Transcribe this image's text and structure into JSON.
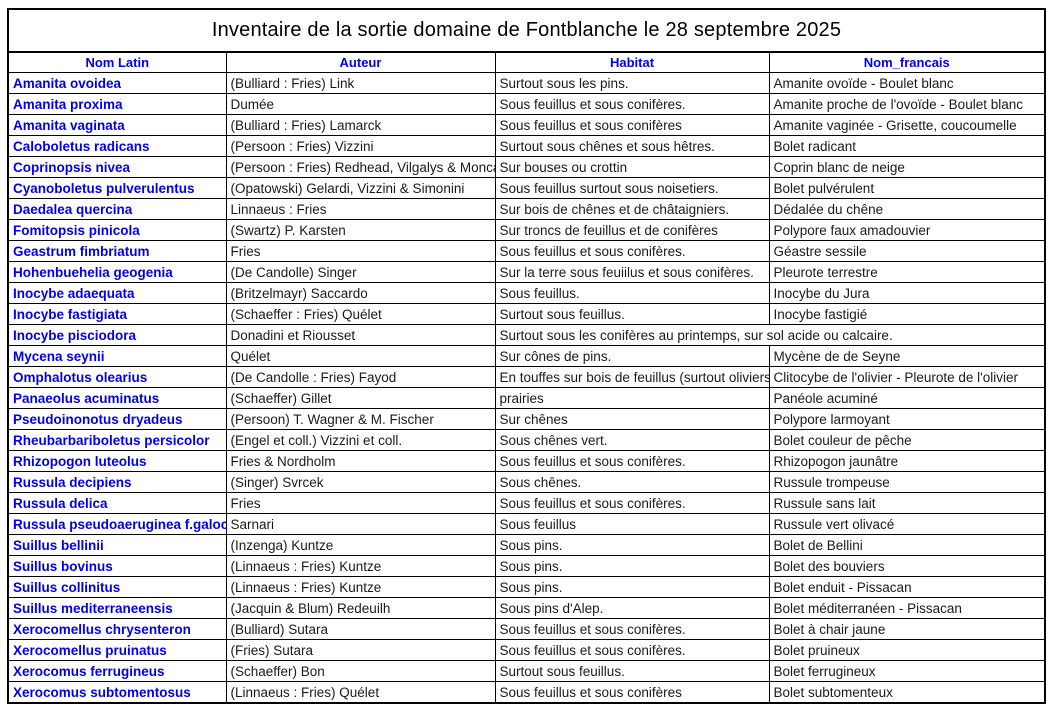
{
  "title": "Inventaire de la sortie domaine de Fontblanche le 28 septembre 2025",
  "columns": [
    "Nom Latin",
    "Auteur",
    "Habitat",
    "Nom_francais"
  ],
  "colors": {
    "header_text": "#0000EE",
    "latin_name_text": "#0000EE",
    "body_text": "#1a1a1a",
    "border": "#000000",
    "background": "#ffffff"
  },
  "rows": [
    {
      "nom_latin": "Amanita ovoidea",
      "auteur": "(Bulliard : Fries) Link",
      "habitat": "Surtout sous les pins.",
      "nom_francais": "Amanite ovoïde - Boulet blanc"
    },
    {
      "nom_latin": "Amanita proxima",
      "auteur": "Dumée",
      "habitat": "Sous feuillus et sous conifères.",
      "nom_francais": "Amanite proche de l'ovoïde - Boulet blanc"
    },
    {
      "nom_latin": "Amanita vaginata",
      "auteur": "(Bulliard : Fries) Lamarck",
      "habitat": "Sous feuillus et sous conifères",
      "nom_francais": "Amanite vaginée - Grisette, coucoumelle"
    },
    {
      "nom_latin": "Caloboletus radicans",
      "auteur": "(Persoon : Fries) Vizzini",
      "habitat": "Surtout sous chênes et sous hêtres.",
      "nom_francais": "Bolet radicant"
    },
    {
      "nom_latin": "Coprinopsis nivea",
      "auteur": "(Persoon : Fries) Redhead, Vilgalys & Moncalvo",
      "habitat": "Sur bouses ou crottin",
      "nom_francais": "Coprin blanc de neige"
    },
    {
      "nom_latin": "Cyanoboletus pulverulentus",
      "auteur": "(Opatowski) Gelardi, Vizzini & Simonini",
      "habitat": "Sous feuillus surtout sous noisetiers.",
      "nom_francais": "Bolet pulvérulent"
    },
    {
      "nom_latin": "Daedalea quercina",
      "auteur": "Linnaeus : Fries",
      "habitat": "Sur bois de chênes et de châtaigniers.",
      "nom_francais": "Dédalée du chêne"
    },
    {
      "nom_latin": "Fomitopsis pinicola",
      "auteur": "(Swartz) P. Karsten",
      "habitat": "Sur troncs de feuillus et de conifères",
      "nom_francais": "Polypore faux amadouvier"
    },
    {
      "nom_latin": "Geastrum fimbriatum",
      "auteur": "Fries",
      "habitat": "Sous feuillus et sous conifères.",
      "nom_francais": "Géastre sessile"
    },
    {
      "nom_latin": "Hohenbuehelia geogenia",
      "auteur": "(De Candolle) Singer",
      "habitat": "Sur la terre sous feuiilus et sous conifères.",
      "nom_francais": "Pleurote terrestre"
    },
    {
      "nom_latin": "Inocybe adaequata",
      "auteur": "(Britzelmayr) Saccardo",
      "habitat": "Sous feuillus.",
      "nom_francais": "Inocybe du Jura"
    },
    {
      "nom_latin": "Inocybe fastigiata",
      "auteur": "(Schaeffer : Fries) Quélet",
      "habitat": "Surtout sous feuillus.",
      "nom_francais": "Inocybe fastigié"
    },
    {
      "nom_latin": "Inocybe pisciodora",
      "auteur": "Donadini et Riousset",
      "habitat": "Surtout sous les conifères au printemps, sur sol acide ou calcaire.",
      "nom_francais": ""
    },
    {
      "nom_latin": "Mycena seynii",
      "auteur": "Quélet",
      "habitat": "Sur cônes de pins.",
      "nom_francais": "Mycène de de Seyne"
    },
    {
      "nom_latin": "Omphalotus olearius",
      "auteur": "(De Candolle : Fries) Fayod",
      "habitat": "En touffes sur bois de feuillus (surtout oliviers)",
      "nom_francais": "Clitocybe de l'olivier - Pleurote de l'olivier"
    },
    {
      "nom_latin": "Panaeolus acuminatus",
      "auteur": "(Schaeffer) Gillet",
      "habitat": "prairies",
      "nom_francais": "Panéole acuminé"
    },
    {
      "nom_latin": "Pseudoinonotus dryadeus",
      "auteur": "(Persoon) T. Wagner & M. Fischer",
      "habitat": "Sur chênes",
      "nom_francais": "Polypore larmoyant"
    },
    {
      "nom_latin": "Rheubarbariboletus persicolor",
      "auteur": "(Engel et coll.) Vizzini et coll.",
      "habitat": "Sous chênes vert.",
      "nom_francais": "Bolet couleur de pêche"
    },
    {
      "nom_latin": "Rhizopogon luteolus",
      "auteur": "Fries & Nordholm",
      "habitat": "Sous feuillus et sous conifères.",
      "nom_francais": "Rhizopogon jaunâtre"
    },
    {
      "nom_latin": "Russula decipiens",
      "auteur": "(Singer) Svrcek",
      "habitat": "Sous chênes.",
      "nom_francais": "Russule trompeuse"
    },
    {
      "nom_latin": "Russula delica",
      "auteur": "Fries",
      "habitat": "Sous feuillus et sous conifères.",
      "nom_francais": "Russule sans lait"
    },
    {
      "nom_latin": "Russula pseudoaeruginea f.galochroa",
      "auteur": "Sarnari",
      "habitat": "Sous feuillus",
      "nom_francais": "Russule vert olivacé"
    },
    {
      "nom_latin": "Suillus bellinii",
      "auteur": "(Inzenga) Kuntze",
      "habitat": "Sous pins.",
      "nom_francais": "Bolet de Bellini"
    },
    {
      "nom_latin": "Suillus bovinus",
      "auteur": "(Linnaeus : Fries) Kuntze",
      "habitat": "Sous pins.",
      "nom_francais": "Bolet des bouviers"
    },
    {
      "nom_latin": "Suillus collinitus",
      "auteur": "(Linnaeus : Fries) Kuntze",
      "habitat": "Sous pins.",
      "nom_francais": "Bolet enduit - Pissacan"
    },
    {
      "nom_latin": "Suillus mediterraneensis",
      "auteur": "(Jacquin & Blum) Redeuilh",
      "habitat": "Sous pins d'Alep.",
      "nom_francais": "Bolet méditerranéen - Pissacan"
    },
    {
      "nom_latin": "Xerocomellus chrysenteron",
      "auteur": "(Bulliard) Sutara",
      "habitat": "Sous feuillus et sous conifères.",
      "nom_francais": "Bolet à chair jaune"
    },
    {
      "nom_latin": "Xerocomellus pruinatus",
      "auteur": "(Fries) Sutara",
      "habitat": "Sous feuillus et sous conifères.",
      "nom_francais": "Bolet pruineux"
    },
    {
      "nom_latin": "Xerocomus ferrugineus",
      "auteur": "(Schaeffer) Bon",
      "habitat": "Surtout sous feuillus.",
      "nom_francais": "Bolet ferrugineux"
    },
    {
      "nom_latin": "Xerocomus subtomentosus",
      "auteur": "(Linnaeus : Fries) Quélet",
      "habitat": "Sous feuillus et sous conifères",
      "nom_francais": "Bolet subtomenteux"
    }
  ]
}
